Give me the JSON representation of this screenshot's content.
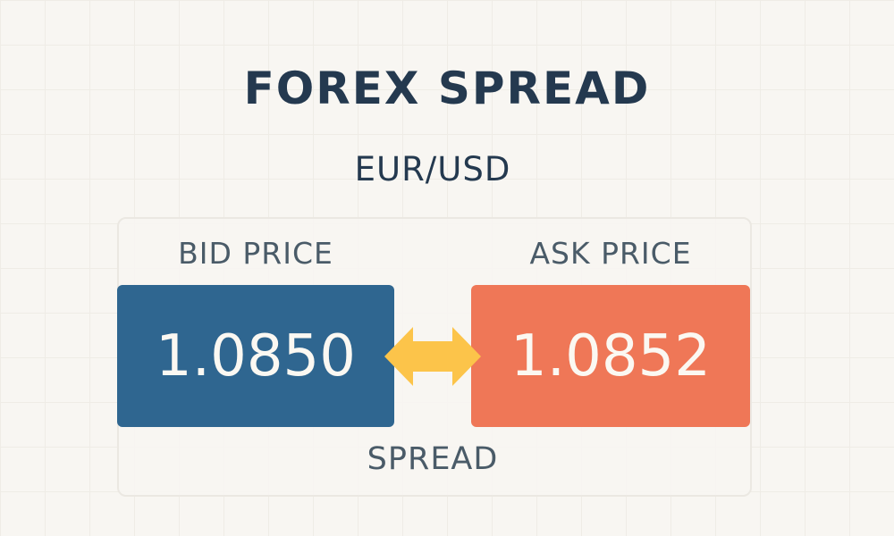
{
  "title": "FOREX SPREAD",
  "pair": "EUR/USD",
  "bid": {
    "label": "BID PRICE",
    "value": "1.0850",
    "color": "#2f6690"
  },
  "ask": {
    "label": "ASK PRICE",
    "value": "1.0852",
    "color": "#ef7757"
  },
  "spread": {
    "label": "SPREAD",
    "arrow_icon": "double-arrow-icon",
    "arrow_color": "#fcc44a"
  }
}
